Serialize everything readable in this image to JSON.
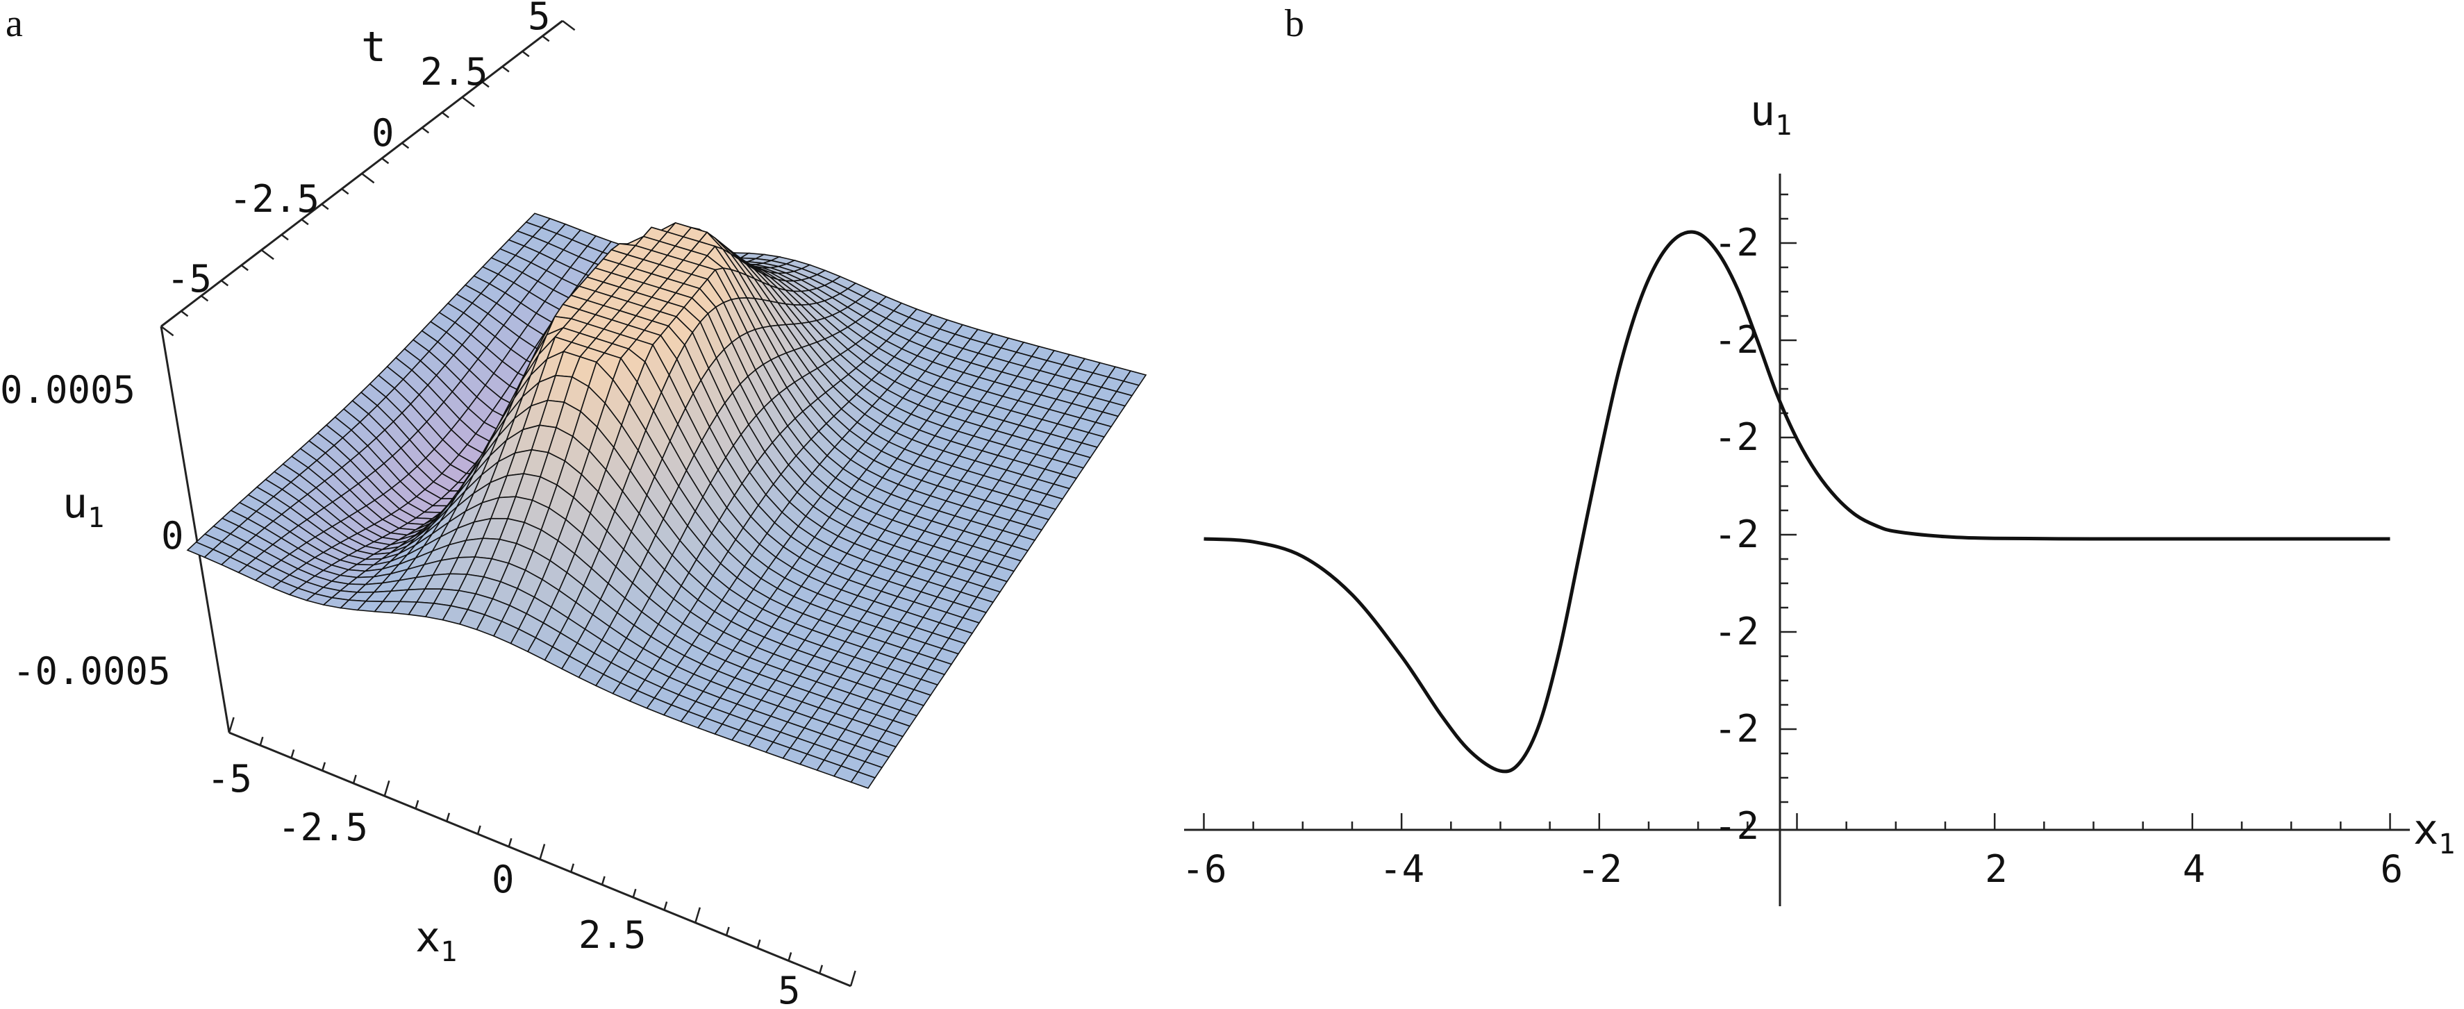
{
  "chart_data": [
    {
      "panel": "a",
      "type": "surface3d",
      "title": "",
      "axes": {
        "x": {
          "label": "x",
          "label_sub": "1",
          "ticks": [
            "-5",
            "-2.5",
            "0",
            "2.5",
            "5"
          ],
          "range": [
            -5,
            5
          ]
        },
        "t": {
          "label": "t",
          "ticks": [
            "-5",
            "-2.5",
            "0",
            "2.5",
            "5"
          ],
          "range": [
            -5,
            5
          ]
        },
        "u": {
          "label": "u",
          "label_sub": "1",
          "ticks": [
            "-0.0005",
            "0",
            "0.0005"
          ],
          "range": [
            -0.0005,
            0.0005
          ]
        }
      },
      "grid_lines": 40,
      "surface": "u1(x1,t): flat plane near 0 with a clipped positive hump near x1≈-1 and a negative trough near x1≈-3",
      "colors": {
        "low": "#a9bfe0",
        "high": "#f1d2b4",
        "mid": "#c8aad3"
      }
    },
    {
      "panel": "b",
      "type": "line",
      "title": "",
      "xlabel": "x",
      "xlabel_sub": "1",
      "ylabel": "u",
      "ylabel_sub": "1",
      "xlim": [
        -6.2,
        6.2
      ],
      "x_ticks": [
        "-6",
        "-4",
        "-2",
        "2",
        "4",
        "6"
      ],
      "y_tick_labels": [
        "-2",
        "-2",
        "-2",
        "-2",
        "-2",
        "-2",
        "-2"
      ],
      "series": [
        {
          "points": [
            [
              -6.0,
              0.0
            ],
            [
              -5.5,
              -0.02
            ],
            [
              -5.0,
              -0.12
            ],
            [
              -4.5,
              -0.38
            ],
            [
              -4.0,
              -0.8
            ],
            [
              -3.6,
              -1.2
            ],
            [
              -3.3,
              -1.45
            ],
            [
              -3.0,
              -1.58
            ],
            [
              -2.8,
              -1.52
            ],
            [
              -2.6,
              -1.25
            ],
            [
              -2.4,
              -0.75
            ],
            [
              -2.2,
              -0.1
            ],
            [
              -2.0,
              0.55
            ],
            [
              -1.8,
              1.15
            ],
            [
              -1.6,
              1.6
            ],
            [
              -1.4,
              1.9
            ],
            [
              -1.2,
              2.06
            ],
            [
              -1.0,
              2.08
            ],
            [
              -0.8,
              1.95
            ],
            [
              -0.6,
              1.7
            ],
            [
              -0.4,
              1.35
            ],
            [
              -0.2,
              0.98
            ],
            [
              0.0,
              0.68
            ],
            [
              0.2,
              0.45
            ],
            [
              0.4,
              0.28
            ],
            [
              0.6,
              0.16
            ],
            [
              0.8,
              0.09
            ],
            [
              1.0,
              0.05
            ],
            [
              1.5,
              0.015
            ],
            [
              2.0,
              0.004
            ],
            [
              3.0,
              0.0
            ],
            [
              4.0,
              0.0
            ],
            [
              5.0,
              0.0
            ],
            [
              6.0,
              0.0
            ]
          ]
        }
      ]
    }
  ],
  "labels": {
    "panel_a": "a",
    "panel_b": "b"
  }
}
